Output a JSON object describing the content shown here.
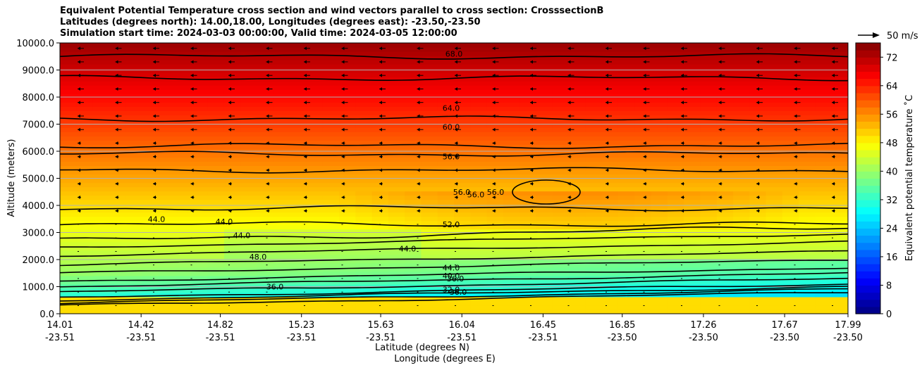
{
  "title": {
    "line1": "Equivalent Potential Temperature cross section and wind vectors parallel to cross section: CrosssectionB",
    "line2": "Latitudes (degrees north): 14.00,18.00, Longitudes (degrees east): -23.50,-23.50",
    "line3": "Simulation start time: 2024-03-03 00:00:00, Valid time: 2024-03-05 12:00:00"
  },
  "chart_data": {
    "type": "heatmap",
    "ylabel": "Altitude (meters)",
    "xlabel": "Latitude (degrees N)",
    "xlabel2": "Longitude (degrees E)",
    "ylim": [
      0,
      10000
    ],
    "yticks": [
      "0.0",
      "1000.0",
      "2000.0",
      "3000.0",
      "4000.0",
      "5000.0",
      "6000.0",
      "7000.0",
      "8000.0",
      "9000.0",
      "10000.0"
    ],
    "xticks_lat": [
      "14.01",
      "14.42",
      "14.82",
      "15.23",
      "15.63",
      "16.04",
      "16.45",
      "16.85",
      "17.26",
      "17.67",
      "17.99"
    ],
    "xticks_lon": [
      "-23.51",
      "-23.51",
      "-23.51",
      "-23.51",
      "-23.51",
      "-23.51",
      "-23.51",
      "-23.50",
      "-23.50",
      "-23.50",
      "-23.50"
    ],
    "grid": "horizontal",
    "colorbar": {
      "label": "Equivalent potential temperature ˚C",
      "ticks": [
        "0",
        "8",
        "16",
        "24",
        "32",
        "40",
        "48",
        "56",
        "64",
        "72"
      ],
      "range": [
        0,
        76
      ]
    },
    "quiver_key": "50 m/s",
    "contour_labels": [
      {
        "text": "68.0",
        "alt": 9600
      },
      {
        "text": "64.0",
        "alt": 7600
      },
      {
        "text": "60.0",
        "alt": 6900
      },
      {
        "text": "56.0",
        "alt": 5800
      },
      {
        "text": "56.0",
        "alt": 4500
      },
      {
        "text": "56.0",
        "alt": 4400
      },
      {
        "text": "56.0",
        "alt": 4500
      },
      {
        "text": "52.0",
        "alt": 3300
      },
      {
        "text": "44.0",
        "alt": 3500
      },
      {
        "text": "44.0",
        "alt": 3400
      },
      {
        "text": "44.0",
        "alt": 2900
      },
      {
        "text": "48.0",
        "alt": 2100
      },
      {
        "text": "44.0",
        "alt": 2400
      },
      {
        "text": "44.0",
        "alt": 1700
      },
      {
        "text": "40.0",
        "alt": 1400
      },
      {
        "text": "36.0",
        "alt": 1300
      },
      {
        "text": "32.0",
        "alt": 900
      },
      {
        "text": "36.0",
        "alt": 1000
      },
      {
        "text": "36.0",
        "alt": 800
      }
    ]
  }
}
